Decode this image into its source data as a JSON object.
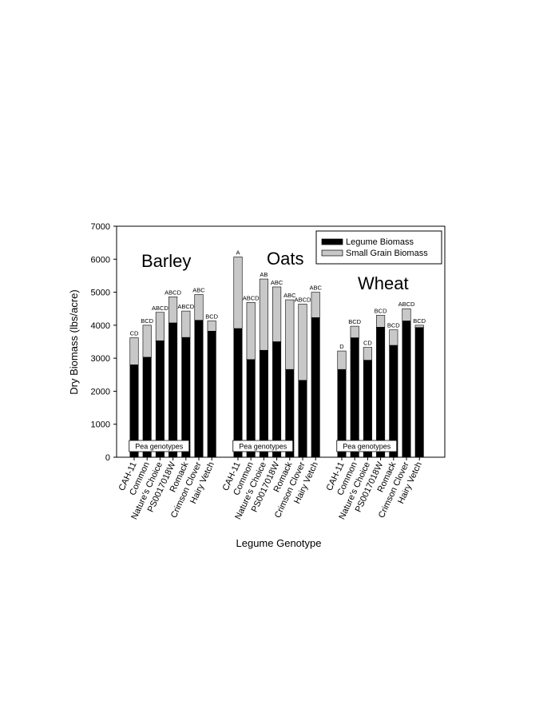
{
  "chart_data": {
    "type": "bar",
    "stacked": true,
    "xlabel": "Legume Genotype",
    "ylabel": "Dry Biomass (lbs/acre)",
    "ylim": [
      0,
      7000
    ],
    "yticks": [
      0,
      1000,
      2000,
      3000,
      4000,
      5000,
      6000,
      7000
    ],
    "grid": false,
    "legend_position": "top-right",
    "series": [
      {
        "name": "Legume Biomass",
        "color": "#000000"
      },
      {
        "name": "Small Grain Biomass",
        "color": "#c8c8c8"
      }
    ],
    "pea_label": "Pea genotypes",
    "groups": [
      {
        "name": "Barley",
        "categories": [
          "CAH-11",
          "Common",
          "Nature's Choice",
          "PS0017018W",
          "Romack",
          "Crimson Clover",
          "Hairy Vetch"
        ],
        "legume": [
          2800,
          3030,
          3530,
          4070,
          3630,
          4150,
          3820
        ],
        "small_grain": [
          820,
          970,
          860,
          790,
          800,
          780,
          310
        ],
        "letters": [
          "CD",
          "BCD",
          "ABCD",
          "ABCD",
          "ABCD",
          "ABC",
          "BCD"
        ]
      },
      {
        "name": "Oats",
        "categories": [
          "CAH-11",
          "Common",
          "Nature's Choice",
          "PS0017018W",
          "Romack",
          "Crimson Clover",
          "Hairy Vetch"
        ],
        "legume": [
          3900,
          2960,
          3240,
          3500,
          2660,
          2330,
          4230
        ],
        "small_grain": [
          2170,
          1730,
          2160,
          1660,
          2110,
          2310,
          770
        ],
        "letters": [
          "A",
          "ABCD",
          "AB",
          "ABC",
          "ABC",
          "ABCD",
          "ABC"
        ]
      },
      {
        "name": "Wheat",
        "categories": [
          "CAH-11",
          "Common",
          "Nature's Choice",
          "PS0017018W",
          "Romack",
          "Crimson Clover",
          "Hairy Vetch"
        ],
        "legume": [
          2660,
          3620,
          2940,
          3940,
          3390,
          4130,
          3930
        ],
        "small_grain": [
          560,
          350,
          390,
          360,
          470,
          370,
          70
        ],
        "letters": [
          "D",
          "BCD",
          "CD",
          "BCD",
          "BCD",
          "ABCD",
          "BCD"
        ]
      }
    ]
  }
}
